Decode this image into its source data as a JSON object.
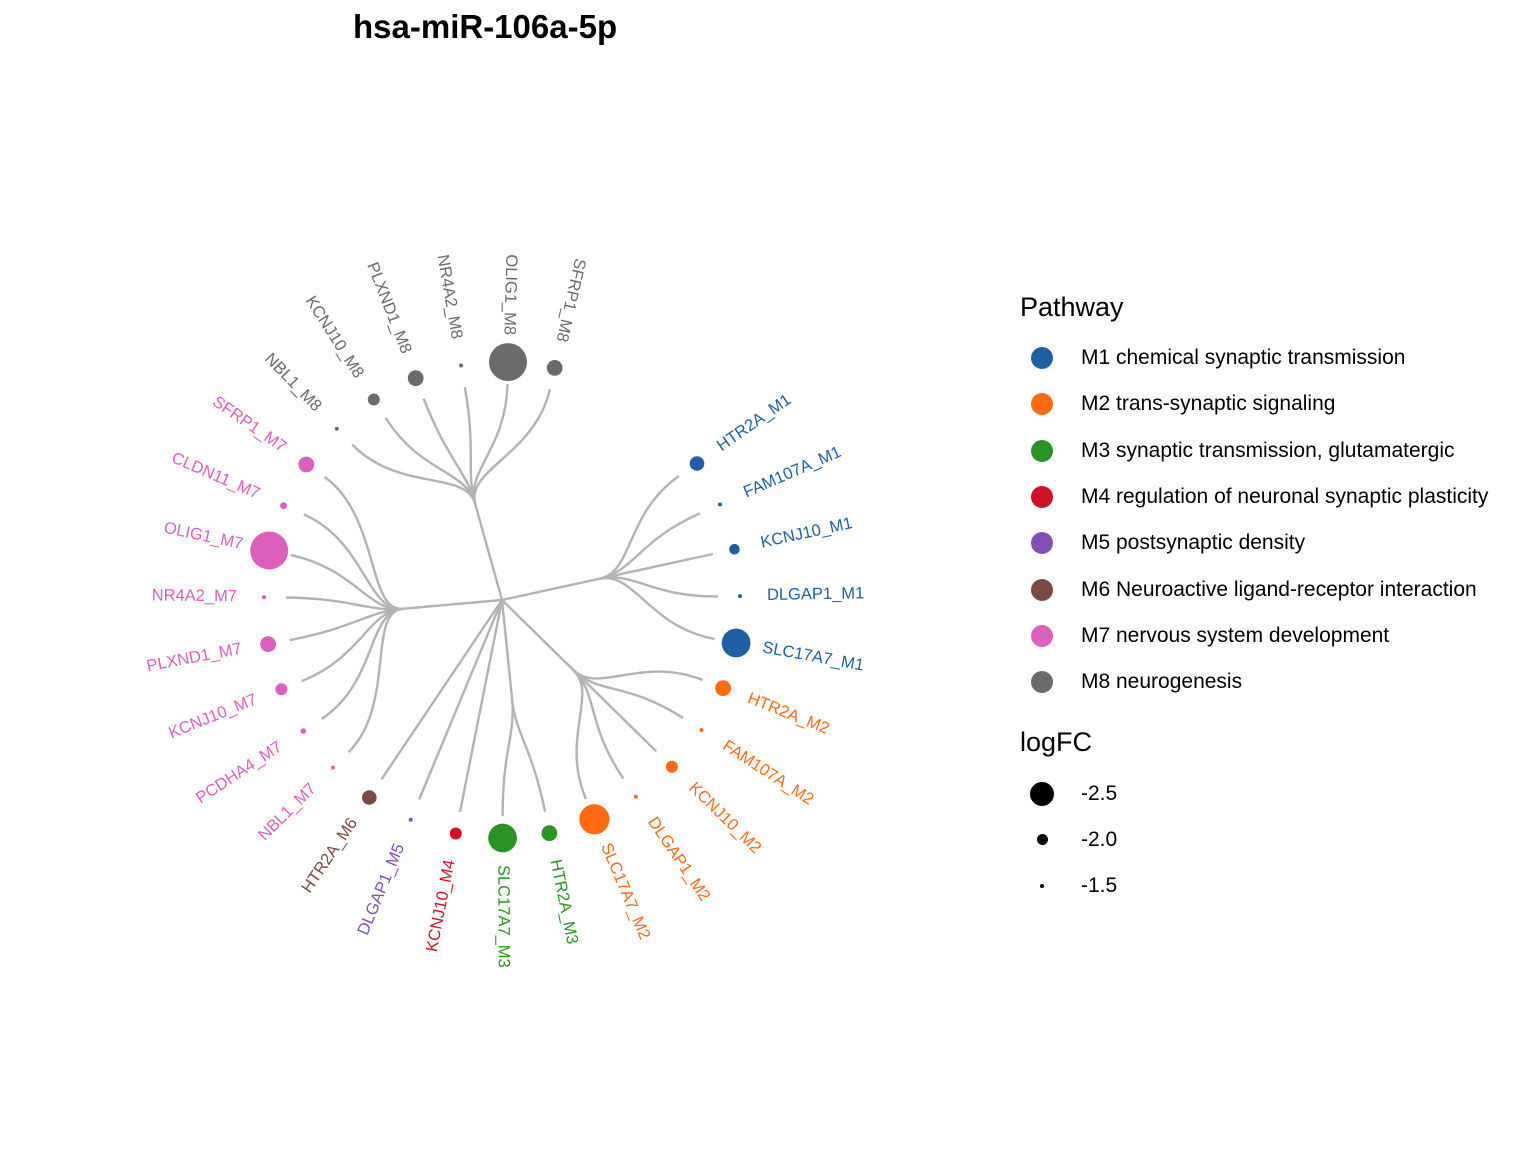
{
  "title": "hsa-miR-106a-5p",
  "legend": {
    "pathway_title": "Pathway",
    "pathways": [
      {
        "id": "M1",
        "label": "M1 chemical synaptic transmission",
        "color": "#1f5fa6"
      },
      {
        "id": "M2",
        "label": "M2 trans-synaptic signaling",
        "color": "#ff6a13"
      },
      {
        "id": "M3",
        "label": "M3 synaptic transmission, glutamatergic",
        "color": "#2a9324"
      },
      {
        "id": "M4",
        "label": "M4 regulation of neuronal synaptic plasticity",
        "color": "#d01226"
      },
      {
        "id": "M5",
        "label": "M5 postsynaptic density",
        "color": "#8250b5"
      },
      {
        "id": "M6",
        "label": "M6 Neuroactive ligand-receptor interaction",
        "color": "#7b4a42"
      },
      {
        "id": "M7",
        "label": "M7 nervous system development",
        "color": "#dc5fbd"
      },
      {
        "id": "M8",
        "label": "M8 neurogenesis",
        "color": "#6b6b6b"
      }
    ],
    "size_title": "logFC",
    "sizes": [
      {
        "label": "-2.5",
        "value": -2.5
      },
      {
        "label": "-2.0",
        "value": -2.0
      },
      {
        "label": "-1.5",
        "value": -1.5
      }
    ]
  },
  "leaves": [
    {
      "label": "HTR2A_M1",
      "pathway": "M1",
      "logFC": -2.1
    },
    {
      "label": "FAM107A_M1",
      "pathway": "M1",
      "logFC": -1.6
    },
    {
      "label": "KCNJ10_M1",
      "pathway": "M1",
      "logFC": -1.95
    },
    {
      "label": "DLGAP1_M1",
      "pathway": "M1",
      "logFC": -1.2
    },
    {
      "label": "SLC17A7_M1",
      "pathway": "M1",
      "logFC": -2.65
    },
    {
      "label": "HTR2A_M2",
      "pathway": "M2",
      "logFC": -2.15
    },
    {
      "label": "FAM107A_M2",
      "pathway": "M2",
      "logFC": -1.65
    },
    {
      "label": "KCNJ10_M2",
      "pathway": "M2",
      "logFC": -2.0
    },
    {
      "label": "DLGAP1_M2",
      "pathway": "M2",
      "logFC": -1.2
    },
    {
      "label": "SLC17A7_M2",
      "pathway": "M2",
      "logFC": -2.7
    },
    {
      "label": "HTR2A_M3",
      "pathway": "M3",
      "logFC": -2.15
    },
    {
      "label": "SLC17A7_M3",
      "pathway": "M3",
      "logFC": -2.65
    },
    {
      "label": "KCNJ10_M4",
      "pathway": "M4",
      "logFC": -2.0
    },
    {
      "label": "DLGAP1_M5",
      "pathway": "M5",
      "logFC": -1.2
    },
    {
      "label": "HTR2A_M6",
      "pathway": "M6",
      "logFC": -2.1
    },
    {
      "label": "NBL1_M7",
      "pathway": "M7",
      "logFC": -0.9
    },
    {
      "label": "PCDHA4_M7",
      "pathway": "M7",
      "logFC": -1.75
    },
    {
      "label": "KCNJ10_M7",
      "pathway": "M7",
      "logFC": -2.0
    },
    {
      "label": "PLXND1_M7",
      "pathway": "M7",
      "logFC": -2.15
    },
    {
      "label": "NR4A2_M7",
      "pathway": "M7",
      "logFC": -1.35
    },
    {
      "label": "OLIG1_M7",
      "pathway": "M7",
      "logFC": -3.05
    },
    {
      "label": "CLDN11_M7",
      "pathway": "M7",
      "logFC": -1.8
    },
    {
      "label": "SFRP1_M7",
      "pathway": "M7",
      "logFC": -2.15
    },
    {
      "label": "NBL1_M8",
      "pathway": "M8",
      "logFC": -0.9
    },
    {
      "label": "KCNJ10_M8",
      "pathway": "M8",
      "logFC": -2.0
    },
    {
      "label": "PLXND1_M8",
      "pathway": "M8",
      "logFC": -2.15
    },
    {
      "label": "NR4A2_M8",
      "pathway": "M8",
      "logFC": -1.35
    },
    {
      "label": "OLIG1_M8",
      "pathway": "M8",
      "logFC": -3.05
    },
    {
      "label": "SFRP1_M8",
      "pathway": "M8",
      "logFC": -2.15
    }
  ]
}
